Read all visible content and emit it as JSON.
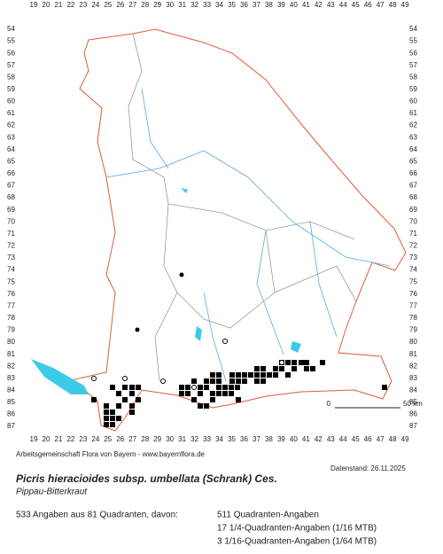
{
  "map": {
    "columns": [
      19,
      20,
      21,
      22,
      23,
      24,
      25,
      26,
      27,
      28,
      29,
      30,
      31,
      32,
      33,
      34,
      35,
      36,
      37,
      38,
      39,
      40,
      41,
      42,
      43,
      44,
      45,
      46,
      47,
      48,
      49
    ],
    "rows": [
      54,
      55,
      56,
      57,
      58,
      59,
      60,
      61,
      62,
      63,
      64,
      65,
      66,
      67,
      68,
      69,
      70,
      71,
      72,
      73,
      74,
      75,
      76,
      77,
      78,
      79,
      80,
      81,
      82,
      83,
      84,
      85,
      86,
      87
    ],
    "credit": "Arbeitsgemeinschaft Flora von Bayern - www.bayernflora.de",
    "scale_start": "0",
    "scale_end": "50 km",
    "data_date": "Datenstand: 26.11.2025"
  },
  "title": "Picris hieracioides subsp. umbellata (Schrank) Ces.",
  "subtitle": "Pippau-Bitterkraut",
  "summary": "533 Angaben aus 81 Quadranten, davon:",
  "legend": [
    "511 Quadranten-Angaben",
    "17 1/4-Quadranten-Angaben (1/16 MTB)",
    "3 1/16-Quadranten-Angaben (1/64 MTB)"
  ]
}
